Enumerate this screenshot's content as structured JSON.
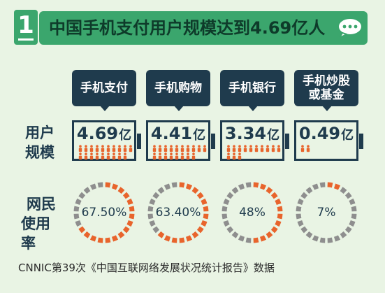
{
  "header": {
    "number": "1",
    "title": "中国手机支付用户规模达到4.69亿人"
  },
  "row_labels": {
    "scale": [
      "用户",
      "规模"
    ],
    "usage": [
      "网民",
      "使用率"
    ]
  },
  "columns": [
    {
      "label_lines": [
        "手机支付"
      ],
      "value": "4.69",
      "unit": "亿",
      "users_yi": 4.69,
      "rate": "67.50%",
      "rate_value": 67.5
    },
    {
      "label_lines": [
        "手机购物"
      ],
      "value": "4.41",
      "unit": "亿",
      "users_yi": 4.41,
      "rate": "63.40%",
      "rate_value": 63.4
    },
    {
      "label_lines": [
        "手机银行"
      ],
      "value": "3.34",
      "unit": "亿",
      "users_yi": 3.34,
      "rate": "48%",
      "rate_value": 48
    },
    {
      "label_lines": [
        "手机炒股",
        "或基金"
      ],
      "value": "0.49",
      "unit": "亿",
      "users_yi": 0.49,
      "rate": "7%",
      "rate_value": 7
    }
  ],
  "source": "CNNIC第39次《中国互联网络发展状况统计报告》数据",
  "colors": {
    "background": "#e9f4e4",
    "title_green": "#3ba66d",
    "navy": "#1f3b4d",
    "orange": "#e8642c",
    "gray": "#8e8e8e"
  }
}
